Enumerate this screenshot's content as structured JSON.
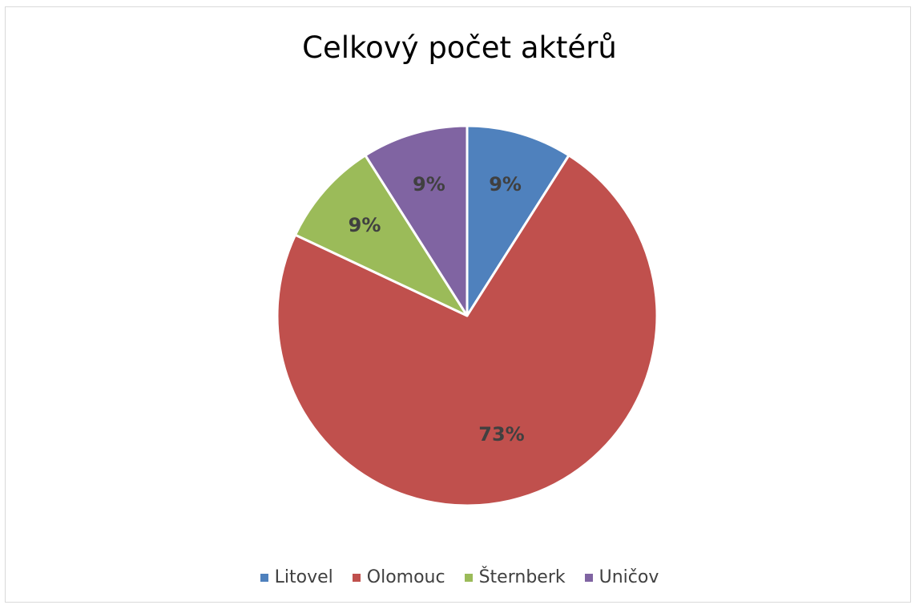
{
  "chart_data": {
    "type": "pie",
    "title": "Celkový počet aktérů",
    "categories": [
      "Litovel",
      "Olomouc",
      "Šternberk",
      "Uničov"
    ],
    "values": [
      9,
      73,
      9,
      9
    ],
    "labels": [
      "9%",
      "73%",
      "9%",
      "9%"
    ],
    "colors": [
      "#4f81bd",
      "#c0504d",
      "#9bbb59",
      "#8064a2"
    ],
    "legend_position": "bottom"
  }
}
